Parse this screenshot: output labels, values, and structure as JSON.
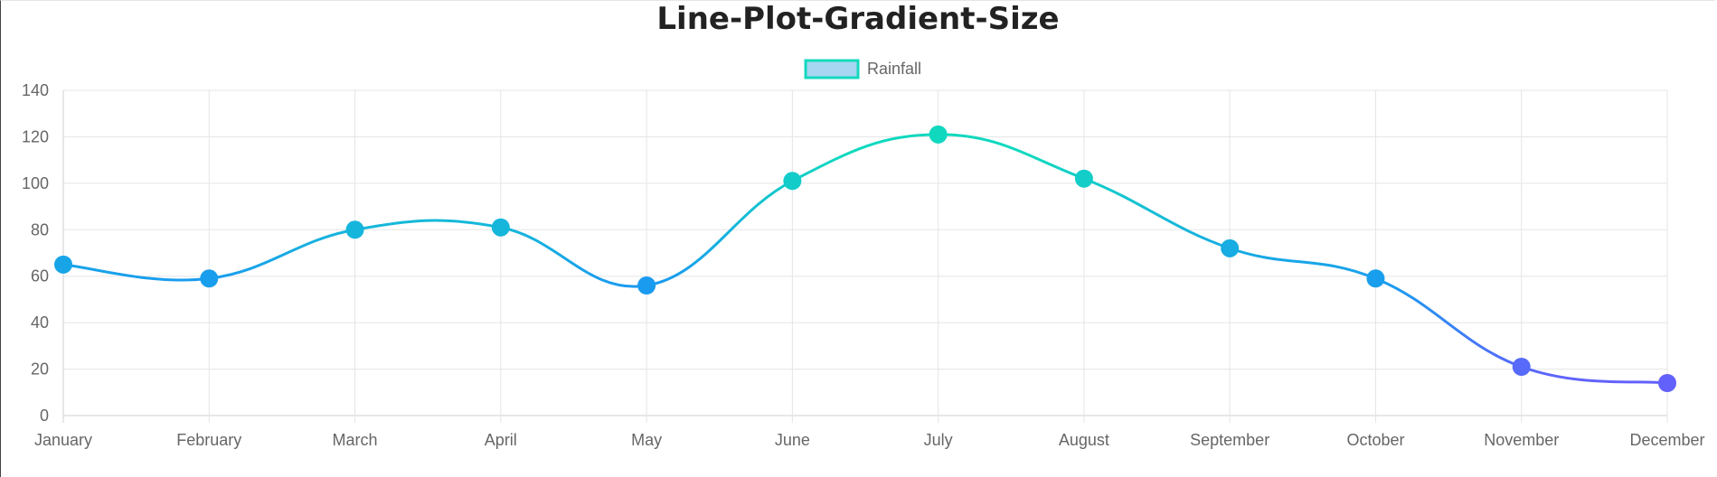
{
  "chart_data": {
    "type": "line",
    "title": "Line-Plot-Gradient-Size",
    "categories": [
      "January",
      "February",
      "March",
      "April",
      "May",
      "June",
      "July",
      "August",
      "September",
      "October",
      "November",
      "December"
    ],
    "series": [
      {
        "name": "Rainfall",
        "values": [
          65,
          59,
          80,
          81,
          56,
          101,
          121,
          102,
          72,
          59,
          21,
          14
        ]
      }
    ],
    "ylim": [
      0,
      140
    ],
    "yticks": [
      0,
      20,
      40,
      60,
      80,
      100,
      120,
      140
    ],
    "grid": true,
    "legend_position": "top",
    "colors": {
      "low": "#7b4dff",
      "mid": "#1a9bf0",
      "high": "#10d8bf",
      "legend_fill": "#a6d6f2",
      "legend_border": "#14d9bd"
    }
  }
}
